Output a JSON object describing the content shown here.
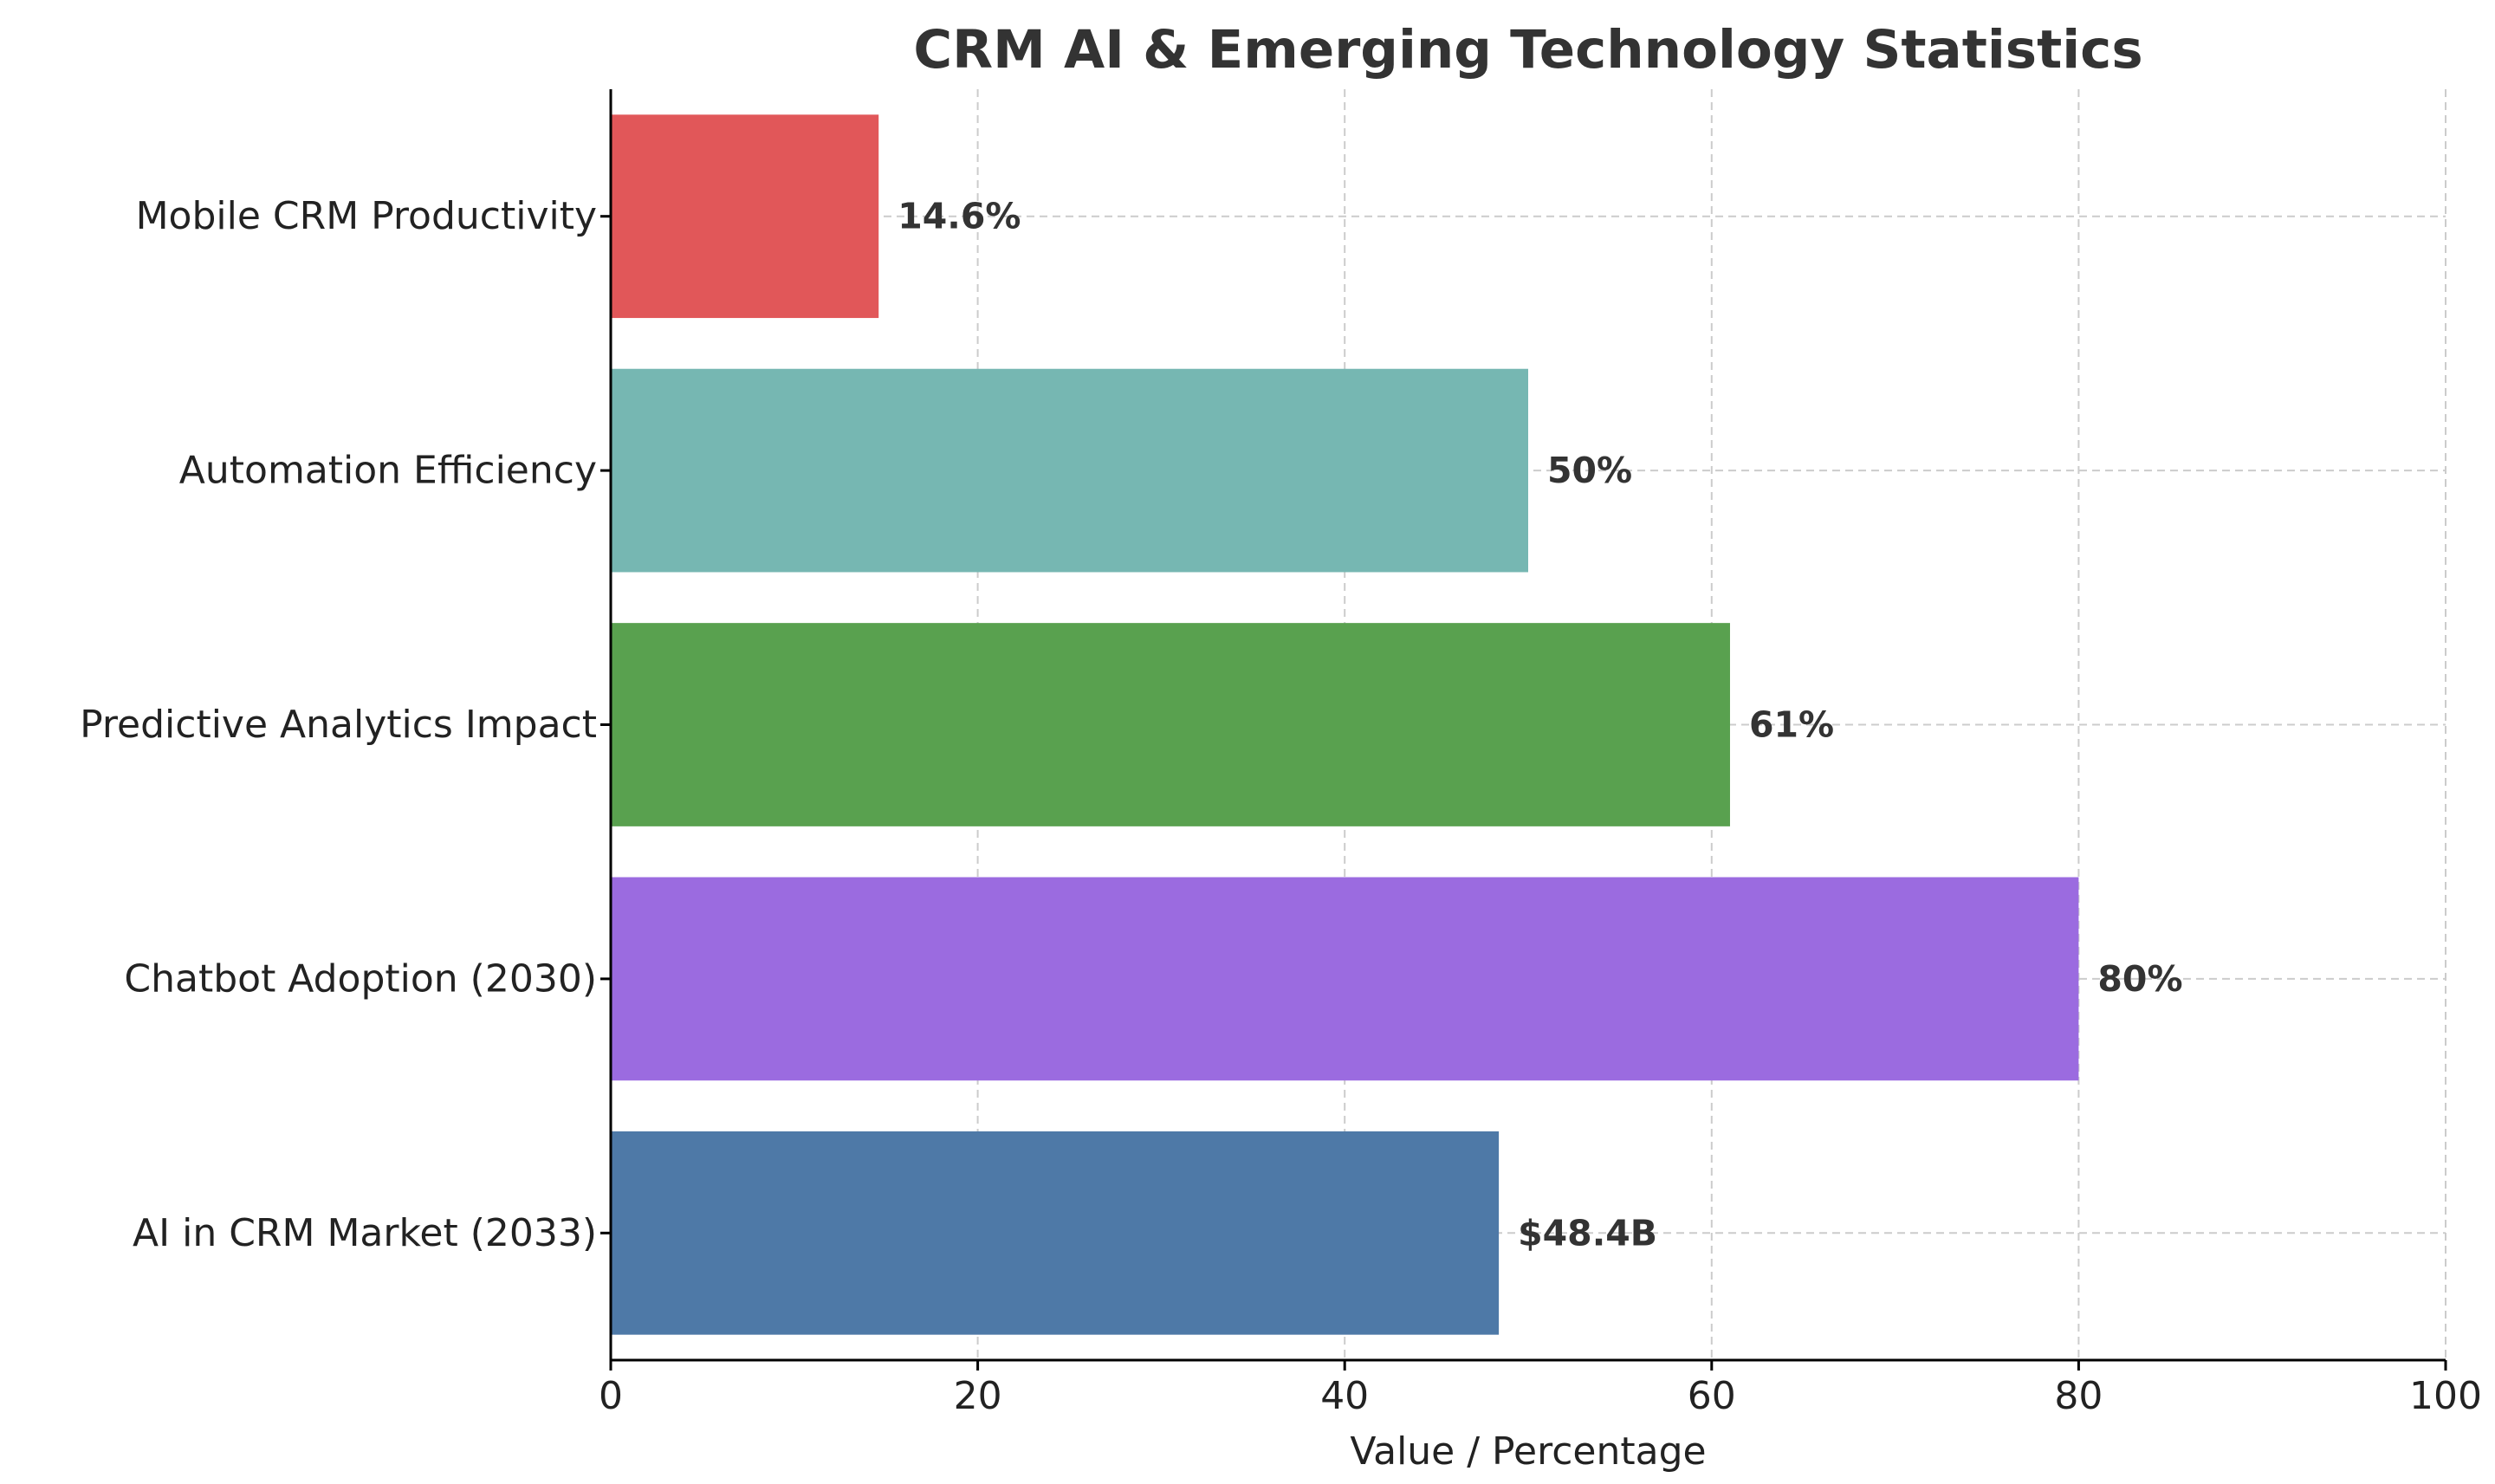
{
  "chart_data": {
    "type": "bar",
    "orientation": "horizontal",
    "title": "CRM AI & Emerging Technology Statistics",
    "xlabel": "Value / Percentage",
    "ylabel": "",
    "xlim": [
      0,
      100
    ],
    "xticks": [
      0,
      20,
      40,
      60,
      80,
      100
    ],
    "grid": true,
    "categories": [
      "AI in CRM Market (2033)",
      "Chatbot Adoption (2030)",
      "Predictive Analytics Impact",
      "Automation Efficiency",
      "Mobile CRM Productivity"
    ],
    "values": [
      48.4,
      80,
      61,
      50,
      14.6
    ],
    "data_labels": [
      "$48.4B",
      "80%",
      "61%",
      "50%",
      "14.6%"
    ],
    "colors": [
      "#4e79a7",
      "#9b6be0",
      "#59a14f",
      "#76b7b2",
      "#e15759"
    ]
  }
}
